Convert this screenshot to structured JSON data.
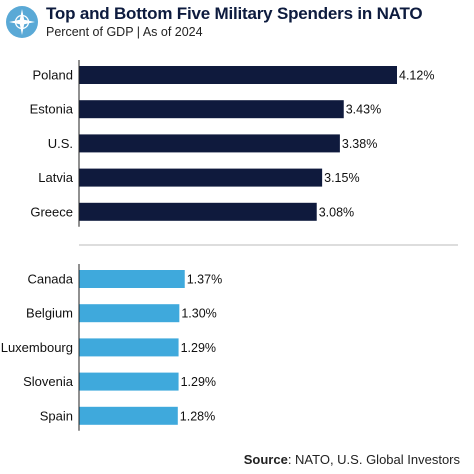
{
  "header": {
    "title": "Top and Bottom Five Military Spenders in NATO",
    "subtitle": "Percent of GDP | As of 2024",
    "logo_icon": "nato-compass-star-icon"
  },
  "colors": {
    "top_bar": "#0f1a3d",
    "bottom_bar": "#3fa9dc",
    "axis": "#222222",
    "divider": "#bbbbbb",
    "logo": "#5aa9d6"
  },
  "chart_data": {
    "type": "bar",
    "orientation": "horizontal",
    "groups": [
      {
        "name": "",
        "categories": [
          "Poland",
          "Estonia",
          "U.S.",
          "Latvia",
          "Greece"
        ],
        "values": [
          4.12,
          3.43,
          3.38,
          3.15,
          3.08
        ],
        "labels": [
          "4.12%",
          "3.43%",
          "3.38%",
          "3.15%",
          "3.08%"
        ]
      },
      {
        "name": "",
        "categories": [
          "Canada",
          "Belgium",
          "Luxembourg",
          "Slovenia",
          "Spain"
        ],
        "values": [
          1.37,
          1.3,
          1.29,
          1.29,
          1.28
        ],
        "labels": [
          "1.37%",
          "1.30%",
          "1.29%",
          "1.29%",
          "1.28%"
        ]
      }
    ],
    "unit": "%",
    "xlim": [
      0,
      4.12
    ],
    "grid": false,
    "legend": "none"
  },
  "source": {
    "label": "Source",
    "text": ": NATO, U.S. Global Investors"
  }
}
